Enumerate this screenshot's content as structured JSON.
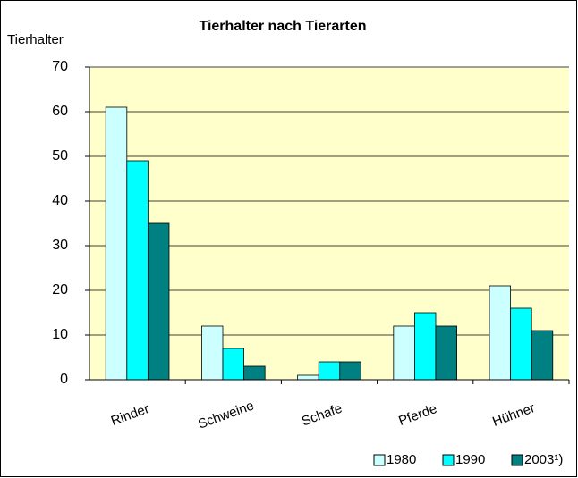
{
  "chart_data": {
    "type": "bar",
    "title": "Tierhalter nach Tierarten",
    "ylabel": "Tierhalter",
    "categories": [
      "Rinder",
      "Schweine",
      "Schafe",
      "Pferde",
      "Hühner"
    ],
    "series": [
      {
        "name": "1980",
        "color": "#ccffff",
        "values": [
          61,
          12,
          1,
          12,
          21
        ]
      },
      {
        "name": "1990",
        "color": "#00ffff",
        "values": [
          49,
          7,
          4,
          15,
          16
        ]
      },
      {
        "name": "2003¹)",
        "color": "#008080",
        "values": [
          35,
          3,
          4,
          12,
          11
        ]
      }
    ],
    "ylim": [
      0,
      70
    ],
    "yticks": [
      0,
      10,
      20,
      30,
      40,
      50,
      60,
      70
    ],
    "grid": true,
    "plot_background": "#ffffcc",
    "legend": "bottom right"
  }
}
